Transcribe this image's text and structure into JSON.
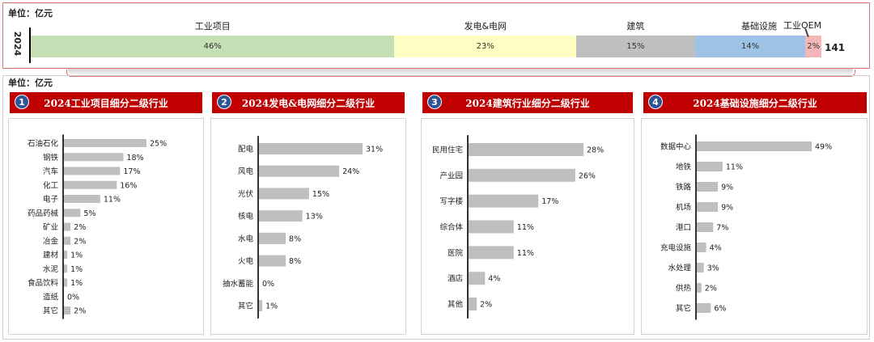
{
  "top": {
    "unit_label": "单位：亿元",
    "year": "2024",
    "total": "141",
    "oem_label": "工业OEM"
  },
  "bottom_unit_label": "单位：亿元",
  "colors": {
    "header_red": "#c00000",
    "badge_blue": "#2f5597",
    "bar_gray": "#bfbfbf",
    "seg_industrial": "#c5e0b4",
    "seg_power": "#ffffc5",
    "seg_building": "#bfbfbf",
    "seg_infra": "#9dc3e6",
    "seg_oem": "#f4b6b6"
  },
  "panels": [
    {
      "number": "1",
      "title": "2024工业项目细分二级行业"
    },
    {
      "number": "2",
      "title": "2024发电&电网细分二级行业"
    },
    {
      "number": "3",
      "title": "2024建筑行业细分二级行业"
    },
    {
      "number": "4",
      "title": "2024基础设施细分二级行业"
    }
  ],
  "chart_data": [
    {
      "type": "bar",
      "stacked": true,
      "orientation": "horizontal",
      "unit": "亿元",
      "categories": [
        "2024"
      ],
      "total": 141,
      "series": [
        {
          "name": "工业项目",
          "label": "46%",
          "values": [
            46
          ]
        },
        {
          "name": "发电&电网",
          "label": "23%",
          "values": [
            23
          ]
        },
        {
          "name": "建筑",
          "label": "15%",
          "values": [
            15
          ]
        },
        {
          "name": "基础设施",
          "label": "14%",
          "values": [
            14
          ]
        },
        {
          "name": "工业OEM",
          "label": "2%",
          "values": [
            2
          ]
        }
      ]
    },
    {
      "type": "bar",
      "orientation": "horizontal",
      "title": "2024工业项目细分二级行业",
      "categories": [
        "石油石化",
        "钢铁",
        "汽车",
        "化工",
        "电子",
        "药品药械",
        "矿业",
        "冶金",
        "建材",
        "水泥",
        "食品饮料",
        "造纸",
        "其它"
      ],
      "values": [
        25,
        18,
        17,
        16,
        11,
        5,
        2,
        2,
        1,
        1,
        1,
        0,
        2
      ],
      "labels": [
        "25%",
        "18%",
        "17%",
        "16%",
        "11%",
        "5%",
        "2%",
        "2%",
        "1%",
        "1%",
        "1%",
        "0%",
        "2%"
      ]
    },
    {
      "type": "bar",
      "orientation": "horizontal",
      "title": "2024发电&电网细分二级行业",
      "categories": [
        "配电",
        "风电",
        "光伏",
        "核电",
        "水电",
        "火电",
        "抽水蓄能",
        "其它"
      ],
      "values": [
        31,
        24,
        15,
        13,
        8,
        8,
        0,
        1
      ],
      "labels": [
        "31%",
        "24%",
        "15%",
        "13%",
        "8%",
        "8%",
        "0%",
        "1%"
      ]
    },
    {
      "type": "bar",
      "orientation": "horizontal",
      "title": "2024建筑行业细分二级行业",
      "categories": [
        "民用住宅",
        "产业园",
        "写字楼",
        "综合体",
        "医院",
        "酒店",
        "其他"
      ],
      "values": [
        28,
        26,
        17,
        11,
        11,
        4,
        2
      ],
      "labels": [
        "28%",
        "26%",
        "17%",
        "11%",
        "11%",
        "4%",
        "2%"
      ]
    },
    {
      "type": "bar",
      "orientation": "horizontal",
      "title": "2024基础设施细分二级行业",
      "categories": [
        "数据中心",
        "地铁",
        "铁路",
        "机场",
        "港口",
        "充电设施",
        "水处理",
        "供热",
        "其它"
      ],
      "values": [
        49,
        11,
        9,
        9,
        7,
        4,
        3,
        2,
        6
      ],
      "labels": [
        "49%",
        "11%",
        "9%",
        "9%",
        "7%",
        "4%",
        "3%",
        "2%",
        "6%"
      ]
    }
  ]
}
